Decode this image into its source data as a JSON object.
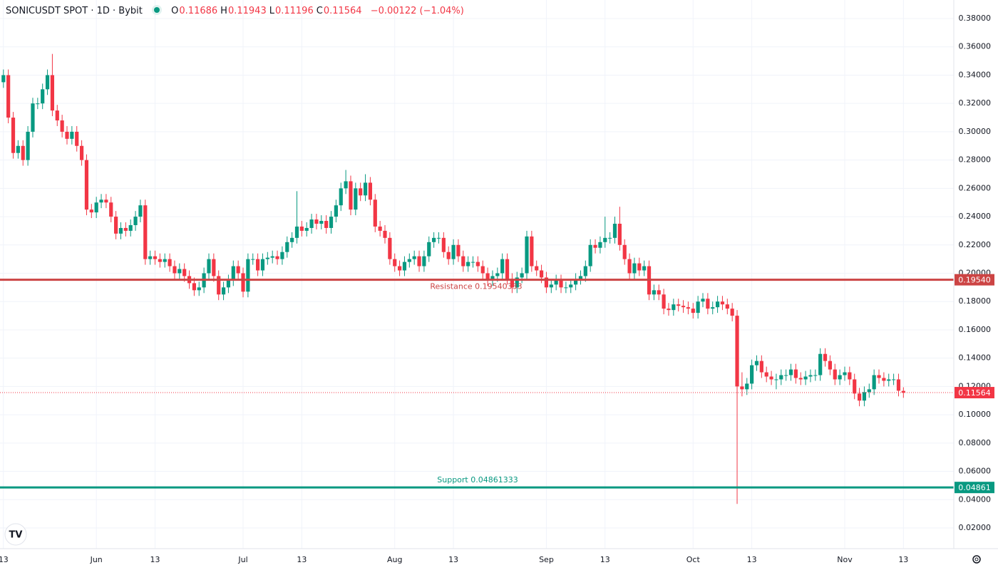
{
  "header": {
    "symbol": "SONICUSDT SPOT · 1D · Bybit",
    "ohlc": [
      {
        "key": "O",
        "value": "0.11686"
      },
      {
        "key": "H",
        "value": "0.11943"
      },
      {
        "key": "L",
        "value": "0.11196"
      },
      {
        "key": "C",
        "value": "0.11564"
      }
    ],
    "change": "−0.00122 (−1.04%)"
  },
  "chart_data": {
    "type": "candlestick",
    "up_color": "#089981",
    "down_color": "#f23645",
    "grid": true,
    "ylim": [
      0.0054,
      0.3931
    ],
    "xlim": [
      -0.7,
      194.3
    ],
    "yticks": [
      {
        "value": 0.02,
        "label": "0.02000"
      },
      {
        "value": 0.04,
        "label": "0.04000"
      },
      {
        "value": 0.06,
        "label": "0.06000"
      },
      {
        "value": 0.08,
        "label": "0.08000"
      },
      {
        "value": 0.1,
        "label": "0.10000"
      },
      {
        "value": 0.12,
        "label": "0.12000"
      },
      {
        "value": 0.14,
        "label": "0.14000"
      },
      {
        "value": 0.16,
        "label": "0.16000"
      },
      {
        "value": 0.18,
        "label": "0.18000"
      },
      {
        "value": 0.2,
        "label": "0.20000"
      },
      {
        "value": 0.22,
        "label": "0.22000"
      },
      {
        "value": 0.24,
        "label": "0.24000"
      },
      {
        "value": 0.26,
        "label": "0.26000"
      },
      {
        "value": 0.28,
        "label": "0.28000"
      },
      {
        "value": 0.3,
        "label": "0.30000"
      },
      {
        "value": 0.32,
        "label": "0.32000"
      },
      {
        "value": 0.34,
        "label": "0.34000"
      },
      {
        "value": 0.36,
        "label": "0.36000"
      },
      {
        "value": 0.38,
        "label": "0.38000"
      }
    ],
    "xticks": [
      {
        "value": 0,
        "label": "13"
      },
      {
        "value": 19,
        "label": "Jun"
      },
      {
        "value": 31,
        "label": "13"
      },
      {
        "value": 49,
        "label": "Jul"
      },
      {
        "value": 61,
        "label": "13"
      },
      {
        "value": 80,
        "label": "Aug"
      },
      {
        "value": 92,
        "label": "13"
      },
      {
        "value": 111,
        "label": "Sep"
      },
      {
        "value": 123,
        "label": "13"
      },
      {
        "value": 141,
        "label": "Oct"
      },
      {
        "value": 153,
        "label": "13"
      },
      {
        "value": 172,
        "label": "Nov"
      },
      {
        "value": 184,
        "label": "13"
      }
    ],
    "lines": [
      {
        "value": 0.19540333,
        "label": "Resistance 0.19540333",
        "axis_label": "0.19540",
        "color": "#cc4444",
        "style": "solid"
      },
      {
        "value": 0.04861333,
        "label": "Support 0.04861333",
        "axis_label": "0.04861",
        "color": "#089981",
        "style": "solid"
      },
      {
        "value": 0.11564,
        "axis_label": "0.11564",
        "color": "#f23645",
        "style": "dotted"
      }
    ],
    "candles": [
      [
        0.335,
        0.344,
        0.331,
        0.34
      ],
      [
        0.34,
        0.344,
        0.306,
        0.31
      ],
      [
        0.31,
        0.314,
        0.281,
        0.285
      ],
      [
        0.285,
        0.294,
        0.281,
        0.29
      ],
      [
        0.29,
        0.294,
        0.276,
        0.28
      ],
      [
        0.28,
        0.304,
        0.276,
        0.3
      ],
      [
        0.3,
        0.324,
        0.296,
        0.32
      ],
      [
        0.32,
        0.324,
        0.316,
        0.32
      ],
      [
        0.32,
        0.334,
        0.316,
        0.33
      ],
      [
        0.33,
        0.344,
        0.326,
        0.34
      ],
      [
        0.34,
        0.355,
        0.311,
        0.315
      ],
      [
        0.315,
        0.319,
        0.304,
        0.308
      ],
      [
        0.308,
        0.312,
        0.296,
        0.3
      ],
      [
        0.3,
        0.304,
        0.291,
        0.295
      ],
      [
        0.295,
        0.304,
        0.291,
        0.3
      ],
      [
        0.3,
        0.304,
        0.286,
        0.29
      ],
      [
        0.29,
        0.294,
        0.276,
        0.28
      ],
      [
        0.28,
        0.284,
        0.241,
        0.245
      ],
      [
        0.245,
        0.249,
        0.239,
        0.243
      ],
      [
        0.243,
        0.254,
        0.239,
        0.25
      ],
      [
        0.25,
        0.256,
        0.246,
        0.252
      ],
      [
        0.252,
        0.256,
        0.246,
        0.25
      ],
      [
        0.25,
        0.254,
        0.236,
        0.24
      ],
      [
        0.24,
        0.244,
        0.224,
        0.228
      ],
      [
        0.228,
        0.236,
        0.224,
        0.232
      ],
      [
        0.232,
        0.236,
        0.226,
        0.23
      ],
      [
        0.23,
        0.238,
        0.226,
        0.234
      ],
      [
        0.234,
        0.244,
        0.23,
        0.24
      ],
      [
        0.24,
        0.252,
        0.236,
        0.248
      ],
      [
        0.248,
        0.252,
        0.206,
        0.21
      ],
      [
        0.21,
        0.216,
        0.206,
        0.212
      ],
      [
        0.212,
        0.216,
        0.206,
        0.21
      ],
      [
        0.21,
        0.214,
        0.204,
        0.208
      ],
      [
        0.208,
        0.214,
        0.204,
        0.21
      ],
      [
        0.21,
        0.214,
        0.201,
        0.205
      ],
      [
        0.205,
        0.209,
        0.196,
        0.2
      ],
      [
        0.2,
        0.207,
        0.196,
        0.203
      ],
      [
        0.203,
        0.207,
        0.194,
        0.198
      ],
      [
        0.198,
        0.202,
        0.189,
        0.193
      ],
      [
        0.193,
        0.197,
        0.184,
        0.188
      ],
      [
        0.188,
        0.194,
        0.184,
        0.19
      ],
      [
        0.19,
        0.204,
        0.186,
        0.2
      ],
      [
        0.2,
        0.214,
        0.196,
        0.21
      ],
      [
        0.21,
        0.214,
        0.194,
        0.198
      ],
      [
        0.198,
        0.202,
        0.181,
        0.185
      ],
      [
        0.185,
        0.194,
        0.181,
        0.19
      ],
      [
        0.19,
        0.199,
        0.186,
        0.195
      ],
      [
        0.195,
        0.209,
        0.191,
        0.205
      ],
      [
        0.205,
        0.209,
        0.196,
        0.2
      ],
      [
        0.2,
        0.204,
        0.183,
        0.187
      ],
      [
        0.187,
        0.214,
        0.183,
        0.21
      ],
      [
        0.21,
        0.214,
        0.206,
        0.21
      ],
      [
        0.21,
        0.214,
        0.198,
        0.202
      ],
      [
        0.202,
        0.214,
        0.198,
        0.21
      ],
      [
        0.21,
        0.215,
        0.206,
        0.211
      ],
      [
        0.211,
        0.216,
        0.207,
        0.212
      ],
      [
        0.212,
        0.216,
        0.206,
        0.21
      ],
      [
        0.21,
        0.219,
        0.206,
        0.215
      ],
      [
        0.215,
        0.226,
        0.211,
        0.222
      ],
      [
        0.222,
        0.229,
        0.218,
        0.225
      ],
      [
        0.225,
        0.258,
        0.221,
        0.233
      ],
      [
        0.233,
        0.237,
        0.226,
        0.23
      ],
      [
        0.23,
        0.236,
        0.226,
        0.232
      ],
      [
        0.232,
        0.242,
        0.228,
        0.238
      ],
      [
        0.238,
        0.242,
        0.231,
        0.235
      ],
      [
        0.235,
        0.241,
        0.231,
        0.237
      ],
      [
        0.237,
        0.241,
        0.228,
        0.232
      ],
      [
        0.232,
        0.244,
        0.228,
        0.24
      ],
      [
        0.24,
        0.252,
        0.236,
        0.248
      ],
      [
        0.248,
        0.264,
        0.244,
        0.26
      ],
      [
        0.26,
        0.273,
        0.256,
        0.265
      ],
      [
        0.265,
        0.269,
        0.241,
        0.245
      ],
      [
        0.245,
        0.264,
        0.241,
        0.26
      ],
      [
        0.26,
        0.264,
        0.251,
        0.255
      ],
      [
        0.255,
        0.27,
        0.251,
        0.264
      ],
      [
        0.264,
        0.268,
        0.248,
        0.252
      ],
      [
        0.252,
        0.256,
        0.229,
        0.233
      ],
      [
        0.233,
        0.237,
        0.226,
        0.23
      ],
      [
        0.23,
        0.234,
        0.221,
        0.225
      ],
      [
        0.225,
        0.229,
        0.206,
        0.21
      ],
      [
        0.21,
        0.214,
        0.201,
        0.205
      ],
      [
        0.205,
        0.209,
        0.198,
        0.202
      ],
      [
        0.202,
        0.212,
        0.198,
        0.208
      ],
      [
        0.208,
        0.214,
        0.204,
        0.21
      ],
      [
        0.21,
        0.216,
        0.206,
        0.212
      ],
      [
        0.212,
        0.216,
        0.201,
        0.205
      ],
      [
        0.205,
        0.216,
        0.201,
        0.212
      ],
      [
        0.212,
        0.226,
        0.208,
        0.222
      ],
      [
        0.222,
        0.229,
        0.218,
        0.225
      ],
      [
        0.225,
        0.229,
        0.221,
        0.225
      ],
      [
        0.225,
        0.229,
        0.211,
        0.215
      ],
      [
        0.215,
        0.219,
        0.206,
        0.21
      ],
      [
        0.21,
        0.224,
        0.206,
        0.22
      ],
      [
        0.22,
        0.224,
        0.208,
        0.212
      ],
      [
        0.212,
        0.216,
        0.201,
        0.205
      ],
      [
        0.205,
        0.212,
        0.201,
        0.208
      ],
      [
        0.208,
        0.212,
        0.204,
        0.208
      ],
      [
        0.208,
        0.212,
        0.201,
        0.205
      ],
      [
        0.205,
        0.209,
        0.196,
        0.2
      ],
      [
        0.2,
        0.204,
        0.191,
        0.195
      ],
      [
        0.195,
        0.202,
        0.191,
        0.198
      ],
      [
        0.198,
        0.204,
        0.194,
        0.2
      ],
      [
        0.2,
        0.214,
        0.196,
        0.21
      ],
      [
        0.21,
        0.214,
        0.192,
        0.196
      ],
      [
        0.196,
        0.2,
        0.186,
        0.19
      ],
      [
        0.19,
        0.201,
        0.186,
        0.197
      ],
      [
        0.197,
        0.204,
        0.193,
        0.2
      ],
      [
        0.2,
        0.23,
        0.196,
        0.226
      ],
      [
        0.226,
        0.23,
        0.201,
        0.205
      ],
      [
        0.205,
        0.209,
        0.198,
        0.202
      ],
      [
        0.202,
        0.206,
        0.193,
        0.197
      ],
      [
        0.197,
        0.201,
        0.186,
        0.19
      ],
      [
        0.19,
        0.196,
        0.186,
        0.192
      ],
      [
        0.192,
        0.199,
        0.188,
        0.195
      ],
      [
        0.195,
        0.199,
        0.186,
        0.19
      ],
      [
        0.19,
        0.194,
        0.186,
        0.19
      ],
      [
        0.19,
        0.196,
        0.186,
        0.192
      ],
      [
        0.192,
        0.2,
        0.188,
        0.196
      ],
      [
        0.196,
        0.202,
        0.192,
        0.198
      ],
      [
        0.198,
        0.209,
        0.194,
        0.205
      ],
      [
        0.205,
        0.224,
        0.201,
        0.22
      ],
      [
        0.22,
        0.224,
        0.214,
        0.218
      ],
      [
        0.218,
        0.226,
        0.214,
        0.222
      ],
      [
        0.222,
        0.24,
        0.218,
        0.225
      ],
      [
        0.225,
        0.229,
        0.221,
        0.225
      ],
      [
        0.225,
        0.24,
        0.221,
        0.235
      ],
      [
        0.235,
        0.247,
        0.216,
        0.22
      ],
      [
        0.22,
        0.224,
        0.206,
        0.21
      ],
      [
        0.21,
        0.214,
        0.196,
        0.2
      ],
      [
        0.2,
        0.211,
        0.196,
        0.207
      ],
      [
        0.207,
        0.211,
        0.198,
        0.202
      ],
      [
        0.202,
        0.209,
        0.198,
        0.205
      ],
      [
        0.205,
        0.209,
        0.181,
        0.185
      ],
      [
        0.185,
        0.192,
        0.181,
        0.188
      ],
      [
        0.188,
        0.192,
        0.181,
        0.185
      ],
      [
        0.185,
        0.189,
        0.171,
        0.175
      ],
      [
        0.175,
        0.179,
        0.17,
        0.174
      ],
      [
        0.174,
        0.182,
        0.17,
        0.178
      ],
      [
        0.178,
        0.182,
        0.173,
        0.177
      ],
      [
        0.177,
        0.181,
        0.172,
        0.176
      ],
      [
        0.176,
        0.18,
        0.171,
        0.175
      ],
      [
        0.175,
        0.179,
        0.168,
        0.172
      ],
      [
        0.172,
        0.184,
        0.168,
        0.18
      ],
      [
        0.18,
        0.186,
        0.176,
        0.182
      ],
      [
        0.182,
        0.186,
        0.171,
        0.175
      ],
      [
        0.175,
        0.18,
        0.171,
        0.176
      ],
      [
        0.176,
        0.184,
        0.172,
        0.18
      ],
      [
        0.18,
        0.184,
        0.174,
        0.178
      ],
      [
        0.178,
        0.182,
        0.171,
        0.175
      ],
      [
        0.175,
        0.179,
        0.166,
        0.17
      ],
      [
        0.17,
        0.174,
        0.037,
        0.12
      ],
      [
        0.12,
        0.13,
        0.113,
        0.118
      ],
      [
        0.118,
        0.126,
        0.114,
        0.122
      ],
      [
        0.122,
        0.139,
        0.118,
        0.135
      ],
      [
        0.135,
        0.142,
        0.131,
        0.138
      ],
      [
        0.138,
        0.142,
        0.126,
        0.13
      ],
      [
        0.13,
        0.134,
        0.123,
        0.127
      ],
      [
        0.127,
        0.131,
        0.121,
        0.125
      ],
      [
        0.125,
        0.129,
        0.118,
        0.125
      ],
      [
        0.125,
        0.132,
        0.121,
        0.128
      ],
      [
        0.128,
        0.132,
        0.124,
        0.128
      ],
      [
        0.128,
        0.136,
        0.124,
        0.132
      ],
      [
        0.132,
        0.136,
        0.122,
        0.126
      ],
      [
        0.126,
        0.13,
        0.121,
        0.125
      ],
      [
        0.125,
        0.131,
        0.121,
        0.127
      ],
      [
        0.127,
        0.132,
        0.123,
        0.128
      ],
      [
        0.128,
        0.132,
        0.124,
        0.128
      ],
      [
        0.128,
        0.147,
        0.124,
        0.143
      ],
      [
        0.143,
        0.147,
        0.134,
        0.138
      ],
      [
        0.138,
        0.142,
        0.128,
        0.132
      ],
      [
        0.132,
        0.136,
        0.121,
        0.125
      ],
      [
        0.125,
        0.132,
        0.121,
        0.128
      ],
      [
        0.128,
        0.134,
        0.124,
        0.13
      ],
      [
        0.13,
        0.134,
        0.121,
        0.125
      ],
      [
        0.125,
        0.129,
        0.111,
        0.115
      ],
      [
        0.115,
        0.119,
        0.106,
        0.11
      ],
      [
        0.11,
        0.12,
        0.106,
        0.116
      ],
      [
        0.116,
        0.122,
        0.112,
        0.118
      ],
      [
        0.118,
        0.132,
        0.114,
        0.128
      ],
      [
        0.128,
        0.132,
        0.122,
        0.126
      ],
      [
        0.126,
        0.13,
        0.12,
        0.124
      ],
      [
        0.124,
        0.129,
        0.12,
        0.125
      ],
      [
        0.125,
        0.129,
        0.121,
        0.125
      ],
      [
        0.125,
        0.129,
        0.113,
        0.117
      ],
      [
        0.11686,
        0.11943,
        0.11196,
        0.11564
      ]
    ]
  }
}
